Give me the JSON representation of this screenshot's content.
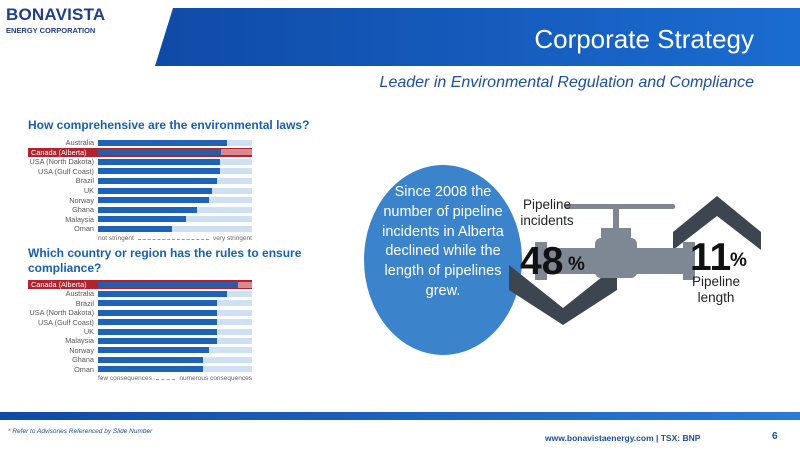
{
  "logo": {
    "name": "BONAVISTA",
    "sub": "ENERGY CORPORATION"
  },
  "header": {
    "title": "Corporate Strategy",
    "subtitle": "Leader in Environmental Regulation and Compliance"
  },
  "colors": {
    "brand_blue": "#1d63b8",
    "highlight_red": "#b3232f",
    "bubble_blue": "#3b84cb",
    "track": "#cfe0f3",
    "valve_gray": "#7d8894"
  },
  "chart_data": [
    {
      "type": "bar",
      "title": "How comprehensive are the environmental laws?",
      "categories": [
        "Australia",
        "Canada (Alberta)",
        "USA (North Dakota)",
        "USA (Gulf Coast)",
        "Brazil",
        "UK",
        "Norway",
        "Ghana",
        "Malaysia",
        "Oman"
      ],
      "values": [
        0.84,
        0.8,
        0.79,
        0.79,
        0.77,
        0.74,
        0.72,
        0.64,
        0.57,
        0.48
      ],
      "highlight": "Canada (Alberta)",
      "scale_left": "not stringent",
      "scale_right": "very stringent"
    },
    {
      "type": "bar",
      "title": "Which country or region has the rules to ensure compliance?",
      "categories": [
        "Canada (Alberta)",
        "Australia",
        "Brazil",
        "USA (North Dakota)",
        "USA (Gulf Coast)",
        "UK",
        "Malaysia",
        "Norway",
        "Ghana",
        "Oman"
      ],
      "values": [
        0.91,
        0.84,
        0.77,
        0.77,
        0.77,
        0.77,
        0.77,
        0.72,
        0.68,
        0.68
      ],
      "highlight": "Canada (Alberta)",
      "scale_left": "few consequences",
      "scale_right": "numerous consequences"
    }
  ],
  "bubble": {
    "text": "Since 2008 the number of pipeline incidents in Alberta declined while the length of pipelines grew."
  },
  "stats": {
    "incidents": {
      "label": "Pipeline incidents",
      "value": "48",
      "unit": "%",
      "direction": "down"
    },
    "length": {
      "value": "11",
      "unit": "%",
      "label": "Pipeline length",
      "direction": "up"
    }
  },
  "icons": {
    "valve": "pipeline-valve-icon",
    "up_chevron": "chevron-up-icon",
    "down_chevron": "chevron-down-icon"
  },
  "footer": {
    "note": "* Refer to Advisories Referenced by Slide Number",
    "site": "www.bonavistaenergy.com  |  TSX: BNP",
    "page": "6"
  }
}
